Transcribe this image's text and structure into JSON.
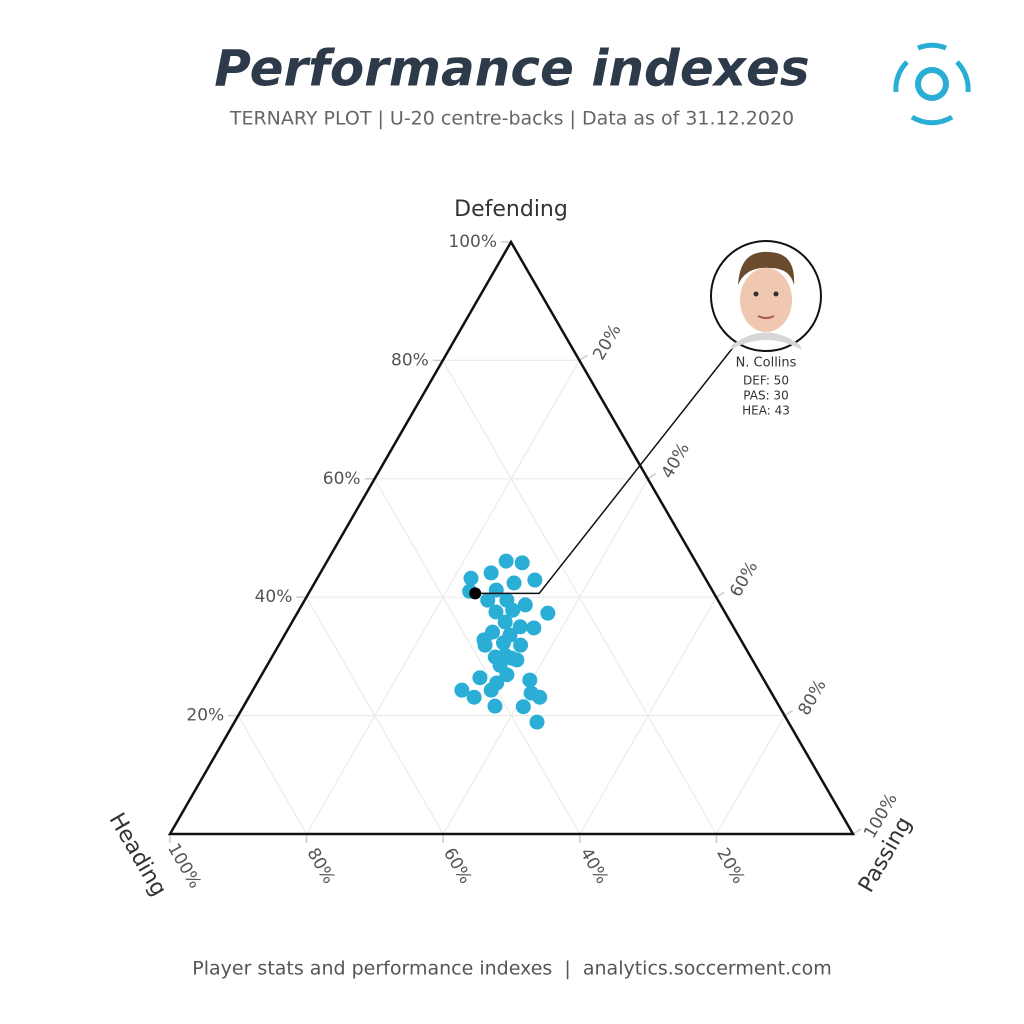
{
  "title": "Performance indexes",
  "subtitle": "TERNARY PLOT | U-20 centre-backs | Data as of 31.12.2020",
  "footer": "Player stats and performance indexes  |  analytics.soccerment.com",
  "chart_data": {
    "type": "ternary",
    "axes": {
      "top": "Defending",
      "left": "Heading",
      "right": "Passing"
    },
    "defending_ticks": [
      {
        "value": 20,
        "label": "20%"
      },
      {
        "value": 40,
        "label": "40%"
      },
      {
        "value": 60,
        "label": "60%"
      },
      {
        "value": 80,
        "label": "80%"
      },
      {
        "value": 100,
        "label": "100%"
      }
    ],
    "passing_ticks": [
      {
        "value": 20,
        "label": "20%"
      },
      {
        "value": 40,
        "label": "40%"
      },
      {
        "value": 60,
        "label": "60%"
      },
      {
        "value": 80,
        "label": "80%"
      },
      {
        "value": 100,
        "label": "100%"
      }
    ],
    "heading_ticks": [
      {
        "value": 20,
        "label": "20%"
      },
      {
        "value": 40,
        "label": "40%"
      },
      {
        "value": 60,
        "label": "60%"
      },
      {
        "value": 80,
        "label": "80%"
      },
      {
        "value": 100,
        "label": "100%"
      }
    ],
    "grid": true,
    "color": "#2aaed6",
    "defending": [
      46.1,
      45.8,
      44.1,
      43.2,
      42.4,
      42.9,
      41.2,
      41.0,
      39.5,
      39.5,
      38.7,
      37.5,
      37.8,
      37.3,
      35.8,
      35.0,
      34.8,
      34.1,
      33.6,
      31.9,
      32.3,
      31.9,
      29.9,
      29.7,
      28.5,
      29.4,
      26.9,
      26.4,
      25.5,
      26.0,
      24.3,
      24.3,
      23.1,
      23.8,
      23.1,
      21.6,
      21.5,
      18.9,
      30.2,
      32.8
    ],
    "passing": [
      26.2,
      28.7,
      25.0,
      22.5,
      29.2,
      32.0,
      27.2,
      23.4,
      26.8,
      29.6,
      32.7,
      29.0,
      31.3,
      36.7,
      31.2,
      33.8,
      35.9,
      30.2,
      33.0,
      30.2,
      32.7,
      35.4,
      32.7,
      35.2,
      34.1,
      36.1,
      35.9,
      32.2,
      35.1,
      39.7,
      34.9,
      30.6,
      33.0,
      41.0,
      42.6,
      36.8,
      41.0,
      44.3,
      34.0,
      29.6
    ],
    "heading": [
      27.7,
      25.5,
      30.9,
      34.3,
      28.4,
      25.1,
      31.6,
      35.6,
      33.7,
      30.9,
      28.6,
      33.5,
      30.9,
      26.0,
      33.0,
      31.2,
      29.3,
      35.7,
      33.4,
      37.9,
      35.0,
      32.7,
      37.4,
      35.1,
      37.4,
      34.5,
      37.2,
      41.4,
      39.4,
      34.3,
      40.8,
      45.1,
      43.9,
      35.2,
      34.3,
      41.6,
      37.5,
      36.8,
      35.8,
      37.6
    ],
    "highlight": {
      "name": "N. Collins",
      "color": "#000000",
      "values": [
        50,
        30,
        43
      ],
      "value_labels": [
        "DEF: 50",
        "PAS: 30",
        "HEA: 43"
      ]
    }
  }
}
